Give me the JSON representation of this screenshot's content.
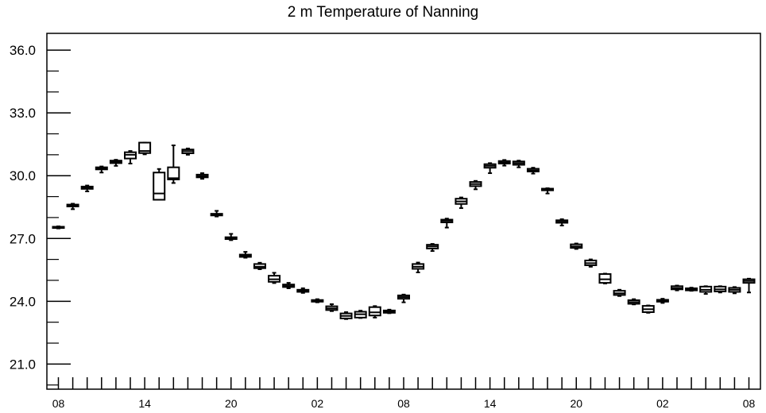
{
  "chart_data": {
    "type": "boxplot",
    "title": "2 m Temperature of Nanning",
    "xlabel": "",
    "ylabel": "",
    "ylim": [
      19.8,
      36.8
    ],
    "y_ticks": [
      "21.0",
      "24.0",
      "27.0",
      "30.0",
      "33.0",
      "36.0"
    ],
    "y_tick_values": [
      21.0,
      24.0,
      27.0,
      30.0,
      33.0,
      36.0
    ],
    "x_tick_labels": [
      "08",
      "14",
      "20",
      "02",
      "08",
      "14",
      "20",
      "02",
      "08"
    ],
    "x_tick_hours": [
      0,
      6,
      12,
      18,
      24,
      30,
      36,
      42,
      48
    ],
    "x_range_hours": [
      -0.8,
      48.8
    ],
    "grid": false,
    "stroke_color": "#000000",
    "series": [
      {
        "hour": 0,
        "min": 27.48,
        "q1": 27.5,
        "median": 27.53,
        "q3": 27.56,
        "max": 27.58
      },
      {
        "hour": 1,
        "min": 28.4,
        "q1": 28.53,
        "median": 28.57,
        "q3": 28.62,
        "max": 28.66
      },
      {
        "hour": 2,
        "min": 29.25,
        "q1": 29.37,
        "median": 29.43,
        "q3": 29.48,
        "max": 29.53
      },
      {
        "hour": 3,
        "min": 30.15,
        "q1": 30.3,
        "median": 30.35,
        "q3": 30.4,
        "max": 30.44
      },
      {
        "hour": 4,
        "min": 30.47,
        "q1": 30.6,
        "median": 30.67,
        "q3": 30.72,
        "max": 30.76
      },
      {
        "hour": 5,
        "min": 30.58,
        "q1": 30.82,
        "median": 31.0,
        "q3": 31.12,
        "max": 31.18
      },
      {
        "hour": 6,
        "min": 31.02,
        "q1": 31.08,
        "median": 31.18,
        "q3": 31.58,
        "max": 31.58
      },
      {
        "hour": 7,
        "min": 28.85,
        "q1": 28.85,
        "median": 29.15,
        "q3": 30.15,
        "max": 30.32
      },
      {
        "hour": 8,
        "min": 29.65,
        "q1": 29.82,
        "median": 29.88,
        "q3": 30.4,
        "max": 31.45
      },
      {
        "hour": 9,
        "min": 31.0,
        "q1": 31.07,
        "median": 31.17,
        "q3": 31.25,
        "max": 31.3
      },
      {
        "hour": 10,
        "min": 29.85,
        "q1": 29.92,
        "median": 29.98,
        "q3": 30.05,
        "max": 30.12
      },
      {
        "hour": 11,
        "min": 28.05,
        "q1": 28.1,
        "median": 28.15,
        "q3": 28.18,
        "max": 28.32
      },
      {
        "hour": 12,
        "min": 26.92,
        "q1": 26.97,
        "median": 27.0,
        "q3": 27.06,
        "max": 27.22
      },
      {
        "hour": 13,
        "min": 26.08,
        "q1": 26.12,
        "median": 26.17,
        "q3": 26.23,
        "max": 26.36
      },
      {
        "hour": 14,
        "min": 25.53,
        "q1": 25.58,
        "median": 25.65,
        "q3": 25.78,
        "max": 25.84
      },
      {
        "hour": 15,
        "min": 24.87,
        "q1": 24.93,
        "median": 25.05,
        "q3": 25.22,
        "max": 25.36
      },
      {
        "hour": 16,
        "min": 24.62,
        "q1": 24.68,
        "median": 24.73,
        "q3": 24.8,
        "max": 24.88
      },
      {
        "hour": 17,
        "min": 24.4,
        "q1": 24.45,
        "median": 24.5,
        "q3": 24.55,
        "max": 24.62
      },
      {
        "hour": 18,
        "min": 23.95,
        "q1": 23.98,
        "median": 24.02,
        "q3": 24.06,
        "max": 24.1
      },
      {
        "hour": 19,
        "min": 23.53,
        "q1": 23.58,
        "median": 23.66,
        "q3": 23.76,
        "max": 23.86
      },
      {
        "hour": 20,
        "min": 23.15,
        "q1": 23.18,
        "median": 23.3,
        "q3": 23.42,
        "max": 23.48
      },
      {
        "hour": 21,
        "min": 23.2,
        "q1": 23.22,
        "median": 23.38,
        "q3": 23.5,
        "max": 23.55
      },
      {
        "hour": 22,
        "min": 23.22,
        "q1": 23.32,
        "median": 23.47,
        "q3": 23.72,
        "max": 23.77
      },
      {
        "hour": 23,
        "min": 23.43,
        "q1": 23.45,
        "median": 23.5,
        "q3": 23.56,
        "max": 23.6
      },
      {
        "hour": 24,
        "min": 23.95,
        "q1": 24.12,
        "median": 24.2,
        "q3": 24.28,
        "max": 24.32
      },
      {
        "hour": 25,
        "min": 25.38,
        "q1": 25.55,
        "median": 25.65,
        "q3": 25.78,
        "max": 25.85
      },
      {
        "hour": 26,
        "min": 26.4,
        "q1": 26.52,
        "median": 26.62,
        "q3": 26.7,
        "max": 26.74
      },
      {
        "hour": 27,
        "min": 27.52,
        "q1": 27.77,
        "median": 27.85,
        "q3": 27.9,
        "max": 27.95
      },
      {
        "hour": 28,
        "min": 28.45,
        "q1": 28.65,
        "median": 28.77,
        "q3": 28.9,
        "max": 28.96
      },
      {
        "hour": 29,
        "min": 29.35,
        "q1": 29.5,
        "median": 29.6,
        "q3": 29.7,
        "max": 29.75
      },
      {
        "hour": 30,
        "min": 30.12,
        "q1": 30.38,
        "median": 30.47,
        "q3": 30.55,
        "max": 30.6
      },
      {
        "hour": 31,
        "min": 30.48,
        "q1": 30.58,
        "median": 30.63,
        "q3": 30.7,
        "max": 30.75
      },
      {
        "hour": 32,
        "min": 30.4,
        "q1": 30.52,
        "median": 30.6,
        "q3": 30.68,
        "max": 30.72
      },
      {
        "hour": 33,
        "min": 30.1,
        "q1": 30.2,
        "median": 30.25,
        "q3": 30.33,
        "max": 30.38
      },
      {
        "hour": 34,
        "min": 29.15,
        "q1": 29.3,
        "median": 29.35,
        "q3": 29.38,
        "max": 29.4
      },
      {
        "hour": 35,
        "min": 27.62,
        "q1": 27.75,
        "median": 27.8,
        "q3": 27.87,
        "max": 27.92
      },
      {
        "hour": 36,
        "min": 26.5,
        "q1": 26.55,
        "median": 26.62,
        "q3": 26.72,
        "max": 26.76
      },
      {
        "hour": 37,
        "min": 25.65,
        "q1": 25.72,
        "median": 25.82,
        "q3": 25.95,
        "max": 26.0
      },
      {
        "hour": 38,
        "min": 24.85,
        "q1": 24.88,
        "median": 25.05,
        "q3": 25.3,
        "max": 25.32
      },
      {
        "hour": 39,
        "min": 24.25,
        "q1": 24.3,
        "median": 24.38,
        "q3": 24.5,
        "max": 24.55
      },
      {
        "hour": 40,
        "min": 23.85,
        "q1": 23.88,
        "median": 23.96,
        "q3": 24.05,
        "max": 24.1
      },
      {
        "hour": 41,
        "min": 23.45,
        "q1": 23.48,
        "median": 23.62,
        "q3": 23.78,
        "max": 23.8
      },
      {
        "hour": 42,
        "min": 23.92,
        "q1": 23.98,
        "median": 24.02,
        "q3": 24.07,
        "max": 24.12
      },
      {
        "hour": 43,
        "min": 24.52,
        "q1": 24.57,
        "median": 24.63,
        "q3": 24.72,
        "max": 24.75
      },
      {
        "hour": 44,
        "min": 24.5,
        "q1": 24.52,
        "median": 24.56,
        "q3": 24.62,
        "max": 24.65
      },
      {
        "hour": 45,
        "min": 24.35,
        "q1": 24.45,
        "median": 24.55,
        "q3": 24.7,
        "max": 24.72
      },
      {
        "hour": 46,
        "min": 24.42,
        "q1": 24.47,
        "median": 24.57,
        "q3": 24.7,
        "max": 24.72
      },
      {
        "hour": 47,
        "min": 24.38,
        "q1": 24.45,
        "median": 24.55,
        "q3": 24.64,
        "max": 24.68
      },
      {
        "hour": 48,
        "min": 24.42,
        "q1": 24.88,
        "median": 24.97,
        "q3": 25.05,
        "max": 25.08
      }
    ]
  }
}
